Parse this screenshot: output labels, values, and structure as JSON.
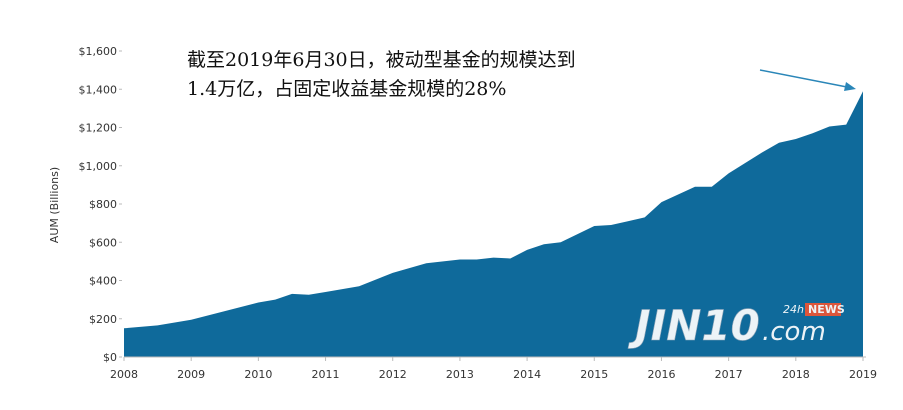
{
  "chart_data": {
    "type": "area",
    "annotation": [
      "截至2019年6月30日，被动型基金的规模达到",
      "1.4万亿，占固定收益基金规模的28%"
    ],
    "y_label": "AUM (Billions)",
    "color": "#0f6a9b",
    "x": [
      2008,
      2008.5,
      2009,
      2009.5,
      2010,
      2010.25,
      2010.5,
      2010.75,
      2011,
      2011.5,
      2012,
      2012.5,
      2013,
      2013.25,
      2013.5,
      2013.75,
      2014,
      2014.25,
      2014.5,
      2015,
      2015.25,
      2015.5,
      2015.75,
      2016,
      2016.5,
      2016.75,
      2017,
      2017.5,
      2017.75,
      2018,
      2018.25,
      2018.5,
      2018.75,
      2018.9,
      2019
    ],
    "values": [
      150,
      165,
      195,
      240,
      285,
      300,
      330,
      325,
      340,
      370,
      440,
      490,
      510,
      510,
      520,
      515,
      560,
      590,
      600,
      685,
      690,
      710,
      730,
      810,
      890,
      890,
      960,
      1070,
      1120,
      1140,
      1170,
      1205,
      1215,
      1320,
      1390
    ],
    "xlim": [
      2008,
      2019
    ],
    "xticks": [
      2008,
      2009,
      2010,
      2011,
      2012,
      2013,
      2014,
      2015,
      2016,
      2017,
      2018,
      2019
    ],
    "ylim": [
      0,
      1600
    ],
    "yticks": [
      {
        "value": 0,
        "label": "$0"
      },
      {
        "value": 200,
        "label": "$200"
      },
      {
        "value": 400,
        "label": "$400"
      },
      {
        "value": 600,
        "label": "$600"
      },
      {
        "value": 800,
        "label": "$800"
      },
      {
        "value": 1000,
        "label": "$1,000"
      },
      {
        "value": 1200,
        "label": "$1,200"
      },
      {
        "value": 1400,
        "label": "$1,400"
      },
      {
        "value": 1600,
        "label": "$1,600"
      }
    ]
  },
  "watermark": {
    "brand": "JIN10",
    "domain": ".com",
    "badge_a": "24h",
    "badge_b": "NEWS"
  }
}
